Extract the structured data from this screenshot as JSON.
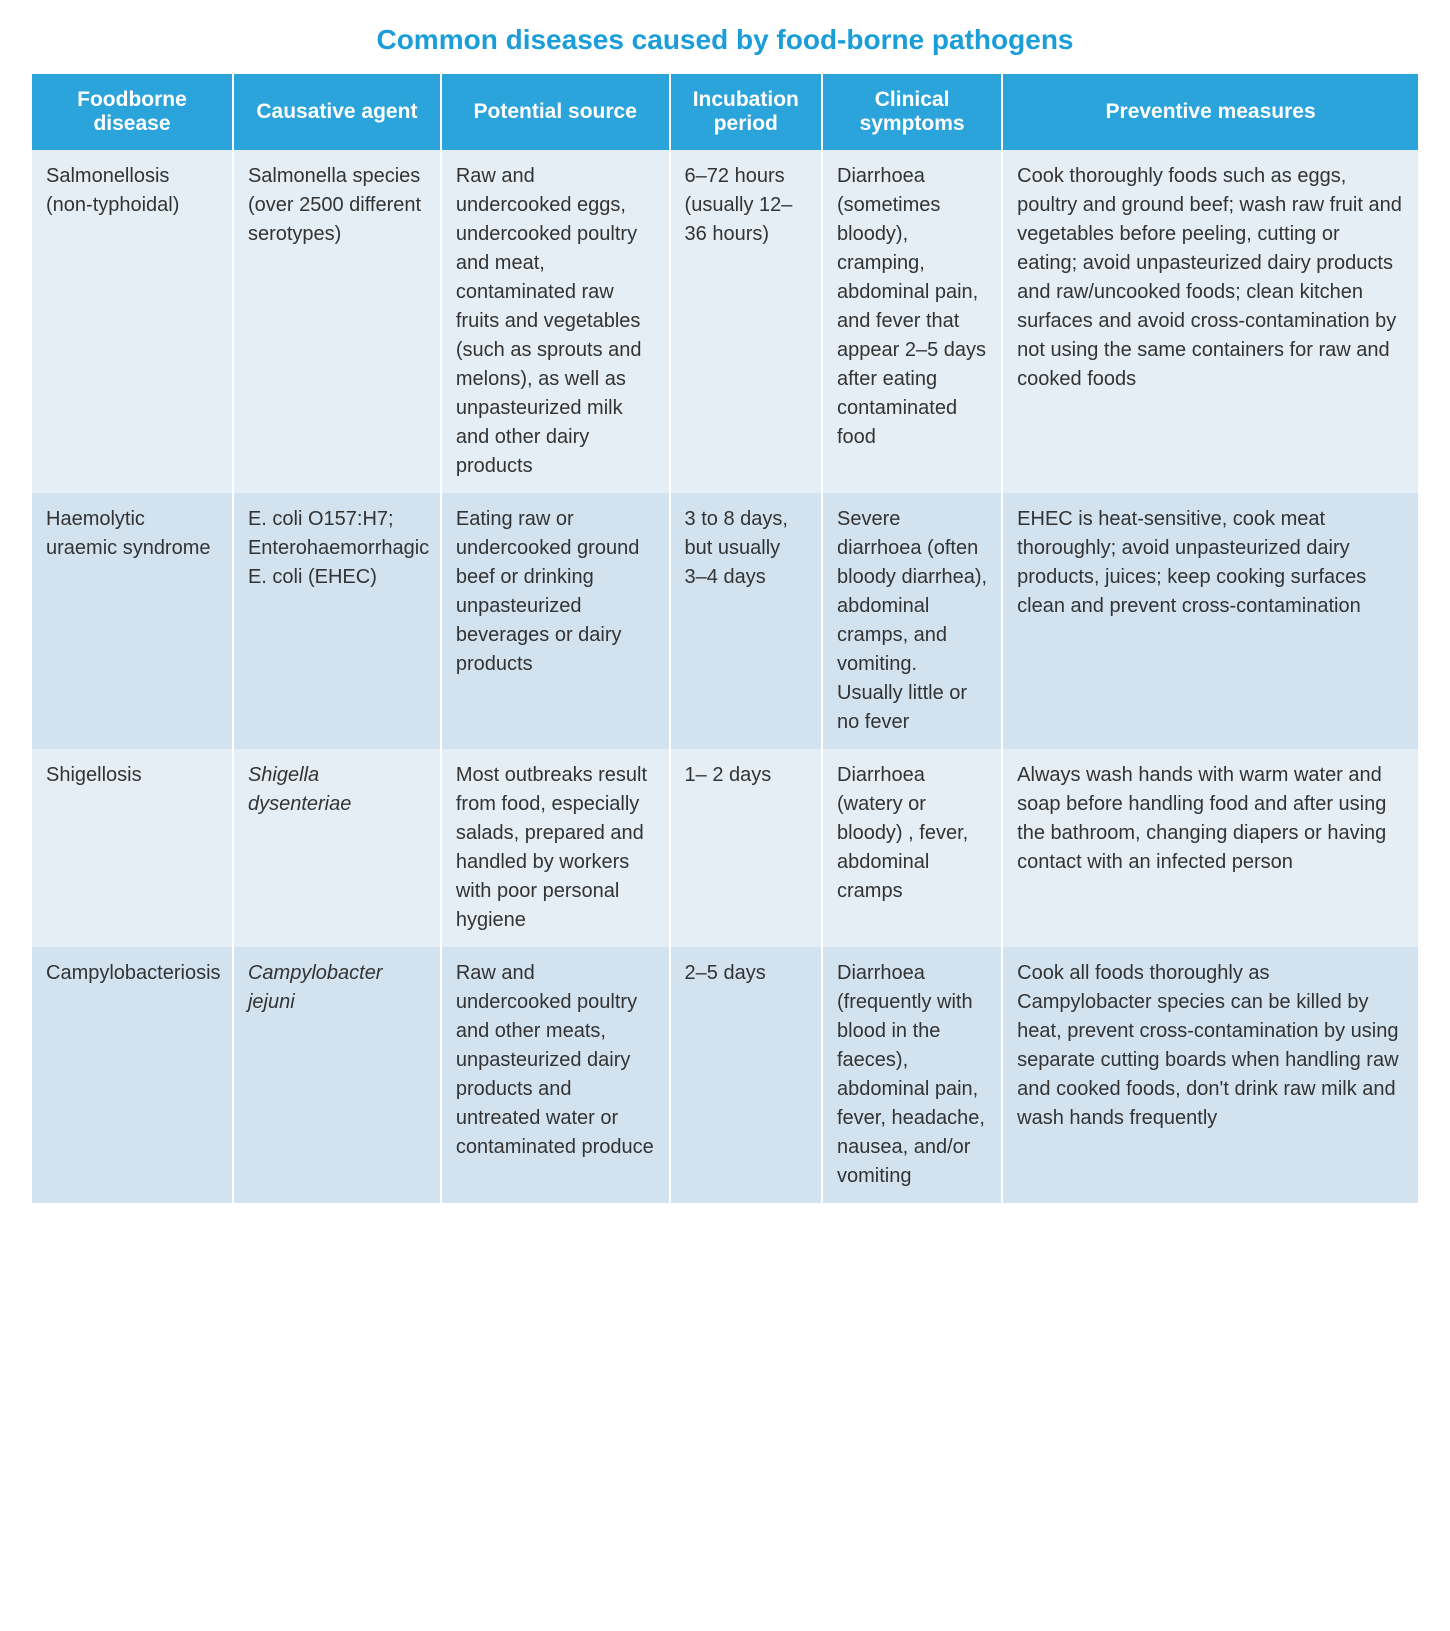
{
  "title": "Common diseases caused by food-borne pathogens",
  "title_color": "#1a9dd9",
  "title_fontsize": "28px",
  "header_bg": "#2ba3db",
  "header_color": "#ffffff",
  "header_fontsize": "21px",
  "cell_fontsize": "20px",
  "cell_color": "#333333",
  "row_bg_light": "#e5eef5",
  "row_bg_dark": "#d2e2ef",
  "border_color": "#ffffff",
  "column_widths": [
    "14.5%",
    "15%",
    "16.5%",
    "11%",
    "13%",
    "30%"
  ],
  "columns": [
    "Foodborne disease",
    "Causative agent",
    "Potential source",
    "Incubation period",
    "Clinical symptoms",
    "Preventive measures"
  ],
  "rows": [
    {
      "disease": "Salmonellosis (non-typhoidal)",
      "agent": "Salmonella species (over 2500 different serotypes)",
      "agent_italic": false,
      "source": "Raw and undercooked eggs, undercooked poultry and meat, contaminated raw fruits and vegetables (such as sprouts and melons), as well as unpasteurized milk and other dairy products",
      "incubation": "6–72 hours (usually 12–36 hours)",
      "symptoms": "Diarrhoea (sometimes bloody), cramping, abdominal pain, and fever that appear 2–5 days after eating contaminated food",
      "prevention": "Cook thoroughly foods such as eggs, poultry and ground beef; wash raw fruit and vegetables before peeling, cutting or eating; avoid unpasteurized dairy products and raw/uncooked foods; clean kitchen surfaces and avoid cross-contamination by not using the same containers for raw and cooked foods"
    },
    {
      "disease": "Haemolytic uraemic syndrome",
      "agent": "E. coli O157:H7; Enterohaemorrhagic E. coli (EHEC)",
      "agent_italic": false,
      "source": "Eating raw or undercooked ground beef or drinking unpasteurized beverages or dairy products",
      "incubation": "3 to 8 days, but usually 3–4 days",
      "symptoms": "Severe diarrhoea (often bloody diarrhea), abdominal cramps, and vomiting. Usually little or no fever",
      "prevention": "EHEC is heat-sensitive, cook meat thoroughly; avoid unpasteurized dairy products, juices; keep cooking surfaces clean and prevent cross-contamination"
    },
    {
      "disease": "Shigellosis",
      "agent": "Shigella dysenteriae",
      "agent_italic": true,
      "source": "Most outbreaks result from food, especially salads, prepared and handled by workers with poor personal hygiene",
      "incubation": "1– 2 days",
      "symptoms": "Diarrhoea (watery or bloody) , fever, abdominal cramps",
      "prevention": "Always wash hands with warm water and soap before handling food and after using the bathroom, changing diapers or having contact with an infected person"
    },
    {
      "disease": "Campylobacteriosis",
      "agent": "Campylobacter jejuni",
      "agent_italic": true,
      "source": "Raw and undercooked poultry and other meats, unpasteurized dairy products and untreated water or contaminated produce",
      "incubation": "2–5 days",
      "symptoms": " Diarrhoea (frequently with blood in the faeces), abdominal pain, fever, headache, nausea, and/or vomiting",
      "prevention": "Cook all foods thoroughly as Campylobacter species can be killed by heat, prevent cross-contamination by using separate cutting boards when handling raw and cooked foods, don't drink raw milk and wash hands frequently"
    }
  ]
}
